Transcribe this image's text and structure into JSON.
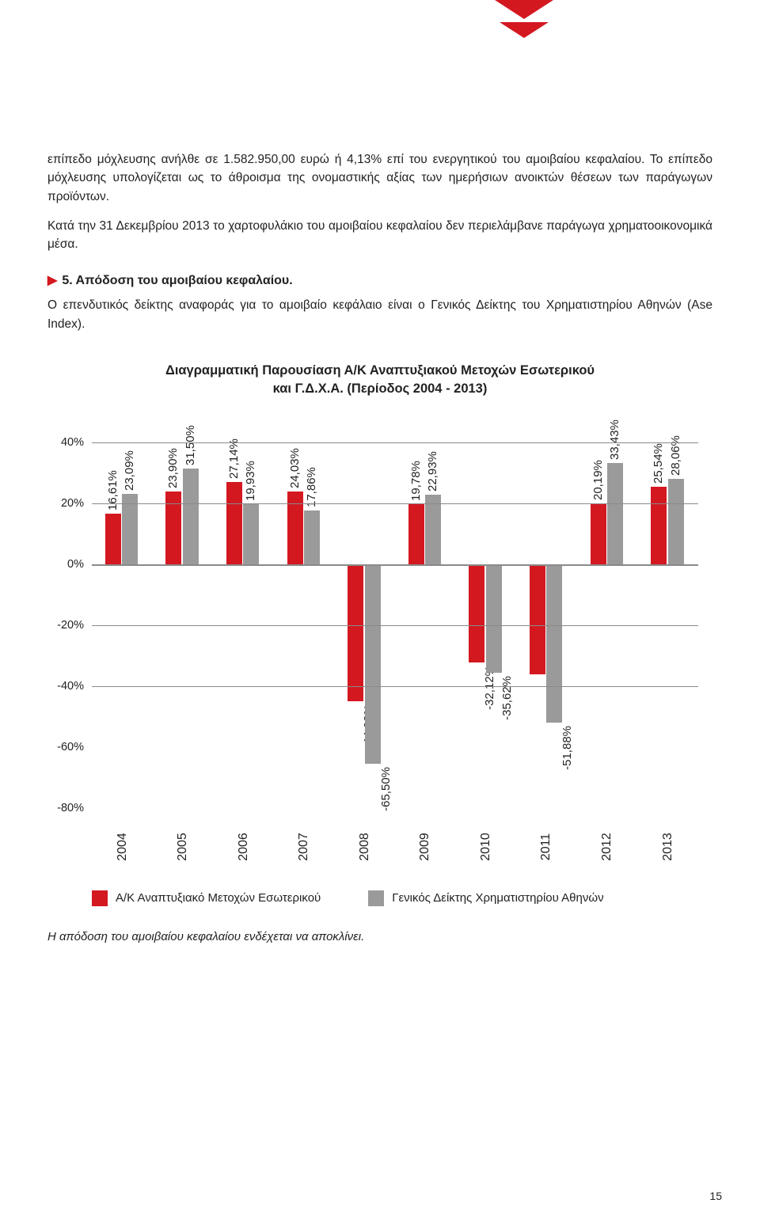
{
  "decor": {
    "chevron_color": "#d41820"
  },
  "paragraphs": {
    "p1": "επίπεδο μόχλευσης ανήλθε σε 1.582.950,00 ευρώ ή 4,13% επί του ενεργητικού του αμοιβαίου κεφαλαίου. Το επίπεδο μόχλευσης υπολογίζεται ως το άθροισμα της ονομαστικής αξίας των ημερήσιων ανοικτών θέσεων των παράγωγων προϊόντων.",
    "p2": "Κατά την 31 Δεκεμβρίου 2013 το χαρτοφυλάκιο του αμοιβαίου κεφαλαίου δεν περιελάμβανε παράγωγα χρηματοοικονομικά μέσα.",
    "p3": "Ο επενδυτικός δείκτης αναφοράς για το αμοιβαίο κεφάλαιο είναι ο Γενικός Δείκτης του Χρηματιστηρίου Αθηνών (Ase Index)."
  },
  "heading": {
    "bullet": "▶",
    "text": "5. Απόδοση του αμοιβαίου κεφαλαίου."
  },
  "chart": {
    "title_line1": "Διαγραμματική Παρουσίαση Α/Κ Αναπτυξιακού Μετοχών Εσωτερικού",
    "title_line2": "και Γ.Δ.Χ.Α. (Περίοδος 2004 - 2013)",
    "title_fontsize": 16,
    "label_fontsize": 15,
    "y_min": -80,
    "y_max": 50,
    "y_ticks": [
      {
        "v": 40,
        "label": "40%",
        "grid": true
      },
      {
        "v": 20,
        "label": "20%",
        "grid": true
      },
      {
        "v": 0,
        "label": "0%",
        "grid": true
      },
      {
        "v": -20,
        "label": "-20%",
        "grid": true
      },
      {
        "v": -40,
        "label": "-40%",
        "grid": true
      },
      {
        "v": -60,
        "label": "-60%",
        "grid": false
      },
      {
        "v": -80,
        "label": "-80%",
        "grid": false
      }
    ],
    "series1": {
      "name": "Α/Κ Αναπτυξιακό Μετοχών Εσωτερικού",
      "color": "#d41820"
    },
    "series2": {
      "name": "Γενικός Δείκτης Χρηματιστηρίου Αθηνών",
      "color": "#9a9a9a"
    },
    "categories": [
      "2004",
      "2005",
      "2006",
      "2007",
      "2008",
      "2009",
      "2010",
      "2011",
      "2012",
      "2013"
    ],
    "data": [
      {
        "s1": 16.61,
        "s2": 23.09,
        "l1": "16,61%",
        "l2": "23,09%"
      },
      {
        "s1": 23.9,
        "s2": 31.5,
        "l1": "23,90%",
        "l2": "31,50%"
      },
      {
        "s1": 27.14,
        "s2": 19.93,
        "l1": "27,14%",
        "l2": "19,93%"
      },
      {
        "s1": 24.03,
        "s2": 17.86,
        "l1": "24,03%",
        "l2": "17,86%"
      },
      {
        "s1": -44.93,
        "s2": -65.5,
        "l1": "-44,93%",
        "l2": "-65,50%"
      },
      {
        "s1": 19.78,
        "s2": 22.93,
        "l1": "19,78%",
        "l2": "22,93%"
      },
      {
        "s1": -32.12,
        "s2": -35.62,
        "l1": "-32,12%",
        "l2": "-35,62%"
      },
      {
        "s1": -36.1,
        "s2": -51.88,
        "l1": "-36,10%",
        "l2": "-51,88%"
      },
      {
        "s1": 20.19,
        "s2": 33.43,
        "l1": "20,19%",
        "l2": "33,43%"
      },
      {
        "s1": 25.54,
        "s2": 28.06,
        "l1": "25,54%",
        "l2": "28,06%"
      }
    ],
    "background_color": "#ffffff",
    "grid_color": "#8a8a8a",
    "bar_width_pct": 26
  },
  "legend": {
    "item1": "Α/Κ Αναπτυξιακό Μετοχών Εσωτερικού",
    "item2": "Γενικός Δείκτης Χρηματιστηρίου Αθηνών"
  },
  "footnote": "Η απόδοση του αμοιβαίου κεφαλαίου ενδέχεται να αποκλίνει.",
  "page_number": "15"
}
